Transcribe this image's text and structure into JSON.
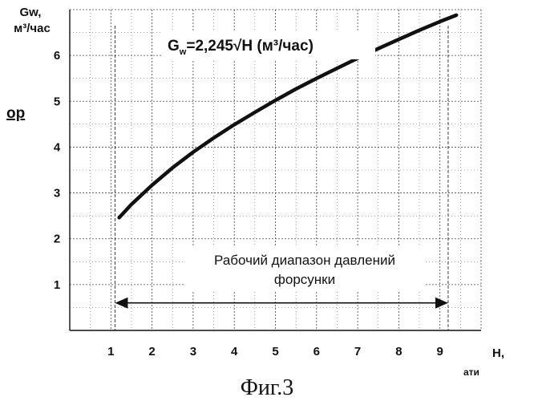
{
  "chart_data": {
    "type": "line",
    "title": "",
    "ylabel_line1": "Gw,",
    "ylabel_line2": "м³/час",
    "left_fragment": "ор",
    "xlabel_line1": "H,",
    "xlabel_line2": "ати",
    "formula": "G",
    "formula_sub": "w",
    "formula_rest": "=2,245√H  (м³/час)",
    "annotation_line1": "Рабочий диапазон давлений",
    "annotation_line2": "форсунки",
    "caption": "Фиг.3",
    "xlim": [
      0,
      10
    ],
    "ylim": [
      0,
      7
    ],
    "x_ticks": [
      1,
      2,
      3,
      4,
      5,
      6,
      7,
      8,
      9
    ],
    "y_ticks": [
      1,
      2,
      3,
      4,
      5,
      6
    ],
    "range": [
      1.1,
      9.2
    ],
    "series": [
      {
        "x": [
          1.2,
          1.5,
          2,
          2.5,
          3,
          3.5,
          4,
          4.5,
          5,
          5.5,
          6,
          6.5,
          7,
          7.5,
          8,
          8.5,
          9,
          9.4
        ],
        "y": [
          2.46,
          2.75,
          3.17,
          3.55,
          3.89,
          4.2,
          4.49,
          4.76,
          5.02,
          5.27,
          5.5,
          5.72,
          5.94,
          6.15,
          6.35,
          6.55,
          6.74,
          6.88
        ]
      }
    ]
  }
}
